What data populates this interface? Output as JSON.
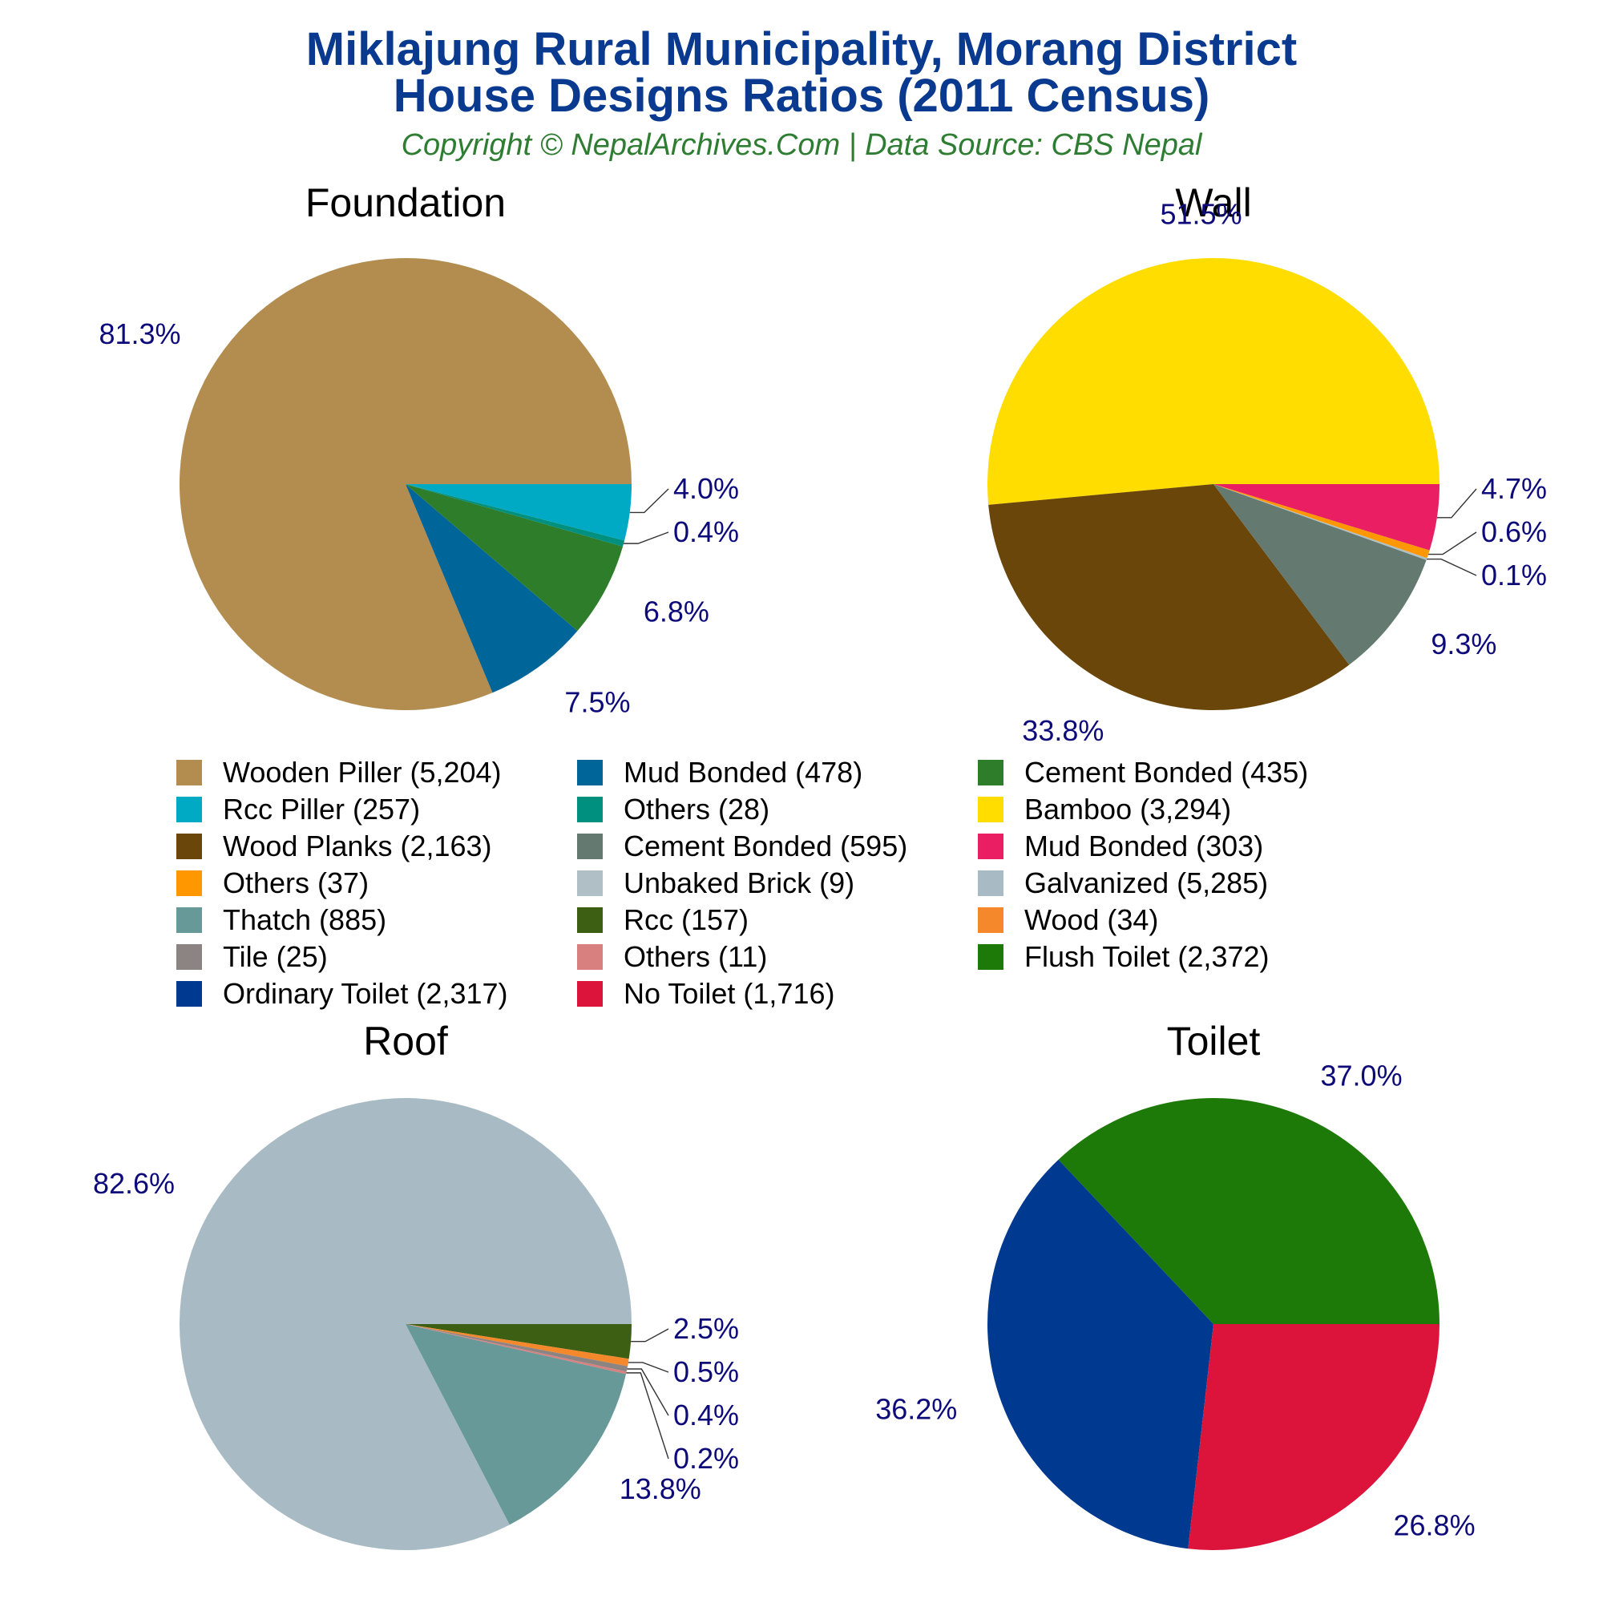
{
  "header": {
    "title_line1": "Miklajung Rural Municipality, Morang District",
    "title_line2": "House Designs Ratios (2011 Census)",
    "subtitle": "Copyright © NepalArchives.Com | Data Source: CBS Nepal"
  },
  "chart_data": [
    {
      "type": "pie",
      "title": "Foundation",
      "slices": [
        {
          "label": "Wooden Piller",
          "value": 5204,
          "percent": "81.3%",
          "color": "#b38d50"
        },
        {
          "label": "Rcc Piller",
          "value": 257,
          "percent": "4.0%",
          "color": "#00aac4"
        },
        {
          "label": "Mud Bonded",
          "value": 478,
          "percent": "7.5%",
          "color": "#006699"
        },
        {
          "label": "Others",
          "value": 28,
          "percent": "0.4%",
          "color": "#009080"
        },
        {
          "label": "Cement Bonded",
          "value": 435,
          "percent": "6.8%",
          "color": "#2e7d2a"
        }
      ]
    },
    {
      "type": "pie",
      "title": "Wall",
      "slices": [
        {
          "label": "Bamboo",
          "value": 3294,
          "percent": "51.5%",
          "color": "#ffdd00"
        },
        {
          "label": "Wood Planks",
          "value": 2163,
          "percent": "33.8%",
          "color": "#6b460a"
        },
        {
          "label": "Cement Bonded",
          "value": 595,
          "percent": "9.3%",
          "color": "#647a70"
        },
        {
          "label": "Mud Bonded",
          "value": 303,
          "percent": "4.7%",
          "color": "#e91e63"
        },
        {
          "label": "Others",
          "value": 37,
          "percent": "0.6%",
          "color": "#ff9800"
        },
        {
          "label": "Unbaked Brick",
          "value": 9,
          "percent": "0.1%",
          "color": "#b0bec5"
        }
      ]
    },
    {
      "type": "pie",
      "title": "Roof",
      "slices": [
        {
          "label": "Galvanized",
          "value": 5285,
          "percent": "82.6%",
          "color": "#a8bbc4"
        },
        {
          "label": "Thatch",
          "value": 885,
          "percent": "13.8%",
          "color": "#679999"
        },
        {
          "label": "Rcc",
          "value": 157,
          "percent": "2.5%",
          "color": "#3d5f14"
        },
        {
          "label": "Wood",
          "value": 34,
          "percent": "0.5%",
          "color": "#f5882a"
        },
        {
          "label": "Tile",
          "value": 25,
          "percent": "0.4%",
          "color": "#8c8482"
        },
        {
          "label": "Others",
          "value": 11,
          "percent": "0.2%",
          "color": "#d88080"
        }
      ]
    },
    {
      "type": "pie",
      "title": "Toilet",
      "slices": [
        {
          "label": "Flush Toilet",
          "value": 2372,
          "percent": "37.0%",
          "color": "#1e7a08"
        },
        {
          "label": "Ordinary Toilet",
          "value": 2317,
          "percent": "36.2%",
          "color": "#003990"
        },
        {
          "label": "No Toilet",
          "value": 1716,
          "percent": "26.8%",
          "color": "#dc143c"
        }
      ]
    }
  ],
  "legend": [
    {
      "text": "Wooden Piller (5,204)",
      "color": "#b38d50"
    },
    {
      "text": "Mud Bonded (478)",
      "color": "#006699"
    },
    {
      "text": "Cement Bonded (435)",
      "color": "#2e7d2a"
    },
    {
      "text": "Rcc Piller (257)",
      "color": "#00aac4"
    },
    {
      "text": "Others (28)",
      "color": "#009080"
    },
    {
      "text": "Bamboo (3,294)",
      "color": "#ffdd00"
    },
    {
      "text": "Wood Planks (2,163)",
      "color": "#6b460a"
    },
    {
      "text": "Cement Bonded (595)",
      "color": "#647a70"
    },
    {
      "text": "Mud Bonded (303)",
      "color": "#e91e63"
    },
    {
      "text": "Others (37)",
      "color": "#ff9800"
    },
    {
      "text": "Unbaked Brick (9)",
      "color": "#b0bec5"
    },
    {
      "text": "Galvanized (5,285)",
      "color": "#a8bbc4"
    },
    {
      "text": "Thatch (885)",
      "color": "#679999"
    },
    {
      "text": "Rcc (157)",
      "color": "#3d5f14"
    },
    {
      "text": "Wood (34)",
      "color": "#f5882a"
    },
    {
      "text": "Tile (25)",
      "color": "#8c8482"
    },
    {
      "text": "Others (11)",
      "color": "#d88080"
    },
    {
      "text": "Flush Toilet (2,372)",
      "color": "#1e7a08"
    },
    {
      "text": "Ordinary Toilet (2,317)",
      "color": "#003990"
    },
    {
      "text": "No Toilet (1,716)",
      "color": "#dc143c"
    }
  ]
}
